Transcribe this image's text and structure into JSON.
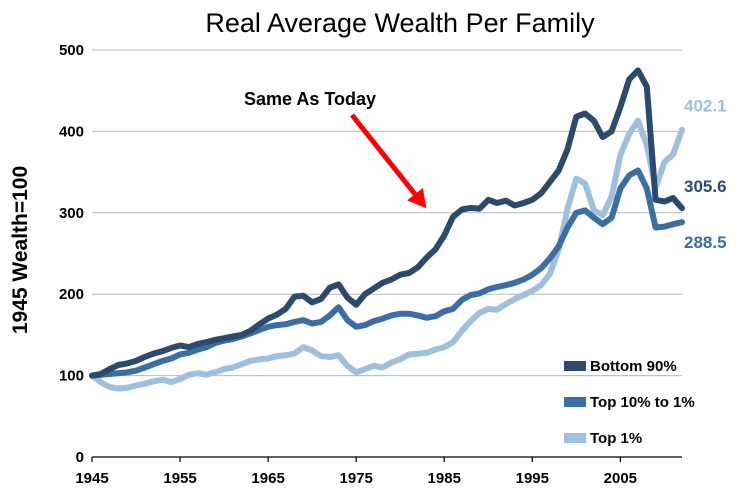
{
  "chart_data": {
    "type": "line",
    "title": "Real Average Wealth Per Family",
    "ylabel": "1945 Wealth=100",
    "xlabel": "",
    "xlim": [
      1945,
      2012
    ],
    "ylim": [
      0,
      500
    ],
    "xticks": [
      1945,
      1955,
      1965,
      1975,
      1985,
      1995,
      2005
    ],
    "yticks": [
      0,
      100,
      200,
      300,
      400,
      500
    ],
    "grid": "horizontal",
    "legend_position": "bottom-right",
    "annotation": {
      "text": "Same As Today",
      "arrow_to": {
        "x": 1985,
        "y": 308
      }
    },
    "x": [
      1945,
      1946,
      1947,
      1948,
      1949,
      1950,
      1951,
      1952,
      1953,
      1954,
      1955,
      1956,
      1957,
      1958,
      1959,
      1960,
      1961,
      1962,
      1963,
      1964,
      1965,
      1966,
      1967,
      1968,
      1969,
      1970,
      1971,
      1972,
      1973,
      1974,
      1975,
      1976,
      1977,
      1978,
      1979,
      1980,
      1981,
      1982,
      1983,
      1984,
      1985,
      1986,
      1987,
      1988,
      1989,
      1990,
      1991,
      1992,
      1993,
      1994,
      1995,
      1996,
      1997,
      1998,
      1999,
      2000,
      2001,
      2002,
      2003,
      2004,
      2005,
      2006,
      2007,
      2008,
      2009,
      2010,
      2011,
      2012
    ],
    "series": [
      {
        "name": "Bottom 90%",
        "color": "#2c4a6e",
        "end_label": "305.6",
        "values": [
          100,
          102,
          108,
          113,
          115,
          118,
          123,
          127,
          130,
          134,
          137,
          135,
          139,
          141,
          144,
          146,
          148,
          150,
          155,
          163,
          170,
          175,
          182,
          197,
          198,
          190,
          194,
          208,
          212,
          196,
          187,
          200,
          207,
          214,
          218,
          224,
          226,
          233,
          245,
          255,
          272,
          295,
          304,
          306,
          305,
          316,
          312,
          315,
          309,
          312,
          316,
          324,
          338,
          352,
          378,
          418,
          422,
          413,
          393,
          400,
          430,
          464,
          475,
          455,
          316,
          314,
          318,
          305.6
        ]
      },
      {
        "name": "Top 10% to 1%",
        "color": "#3c6ea6",
        "end_label": "288.5",
        "values": [
          100,
          101,
          102,
          103,
          104,
          106,
          110,
          114,
          118,
          121,
          126,
          128,
          132,
          135,
          140,
          143,
          145,
          148,
          152,
          156,
          160,
          162,
          163,
          166,
          168,
          164,
          166,
          174,
          184,
          168,
          160,
          162,
          167,
          170,
          174,
          176,
          176,
          174,
          171,
          173,
          179,
          182,
          193,
          199,
          201,
          206,
          209,
          211,
          214,
          218,
          224,
          232,
          244,
          259,
          282,
          300,
          303,
          294,
          286,
          294,
          330,
          346,
          352,
          330,
          282,
          283,
          286,
          288.5
        ]
      },
      {
        "name": "Top 1%",
        "color": "#9fbfe0",
        "end_label": "402.1",
        "values": [
          100,
          92,
          86,
          84,
          85,
          88,
          90,
          93,
          95,
          92,
          96,
          101,
          103,
          101,
          104,
          108,
          110,
          114,
          118,
          120,
          121,
          124,
          125,
          127,
          135,
          131,
          124,
          123,
          125,
          112,
          104,
          108,
          112,
          110,
          116,
          120,
          126,
          127,
          128,
          132,
          135,
          141,
          155,
          167,
          177,
          182,
          181,
          188,
          194,
          199,
          204,
          211,
          225,
          255,
          305,
          342,
          336,
          303,
          297,
          320,
          371,
          397,
          413,
          383,
          331,
          362,
          372,
          402.1
        ]
      }
    ]
  }
}
